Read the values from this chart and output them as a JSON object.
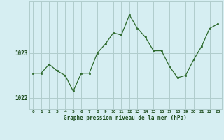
{
  "x": [
    0,
    1,
    2,
    3,
    4,
    5,
    6,
    7,
    8,
    9,
    10,
    11,
    12,
    13,
    14,
    15,
    16,
    17,
    18,
    19,
    20,
    21,
    22,
    23
  ],
  "y": [
    1022.55,
    1022.55,
    1022.75,
    1022.6,
    1022.5,
    1022.15,
    1022.55,
    1022.55,
    1023.0,
    1023.2,
    1023.45,
    1023.4,
    1023.85,
    1023.55,
    1023.35,
    1023.05,
    1023.05,
    1022.7,
    1022.45,
    1022.5,
    1022.85,
    1023.15,
    1023.55,
    1023.65
  ],
  "line_color": "#2d6a2d",
  "marker_color": "#2d6a2d",
  "bg_color": "#d6eef2",
  "grid_color": "#b0cccc",
  "xlabel": "Graphe pression niveau de la mer (hPa)",
  "xlabel_color": "#1a4a1a",
  "tick_color": "#1a4a1a",
  "ytick_labels": [
    "1022",
    "1023"
  ],
  "ytick_values": [
    1022,
    1023
  ],
  "ylim": [
    1021.75,
    1024.15
  ],
  "xlim": [
    -0.5,
    23.5
  ],
  "xtick_labels": [
    "0",
    "1",
    "2",
    "3",
    "4",
    "5",
    "6",
    "7",
    "8",
    "9",
    "10",
    "11",
    "12",
    "13",
    "14",
    "15",
    "16",
    "17",
    "18",
    "19",
    "20",
    "21",
    "22",
    "23"
  ]
}
